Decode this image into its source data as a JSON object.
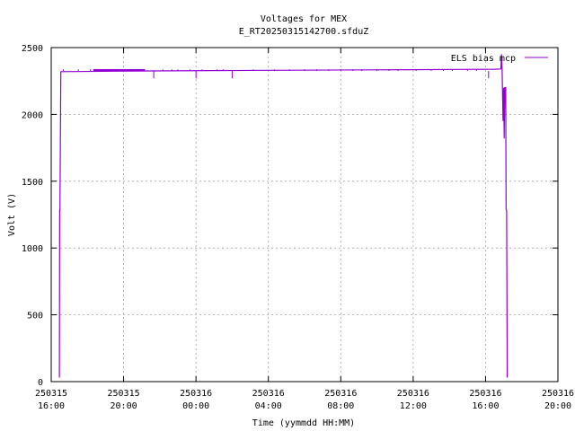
{
  "chart_data": {
    "type": "line",
    "title": "Voltages for MEX",
    "subtitle": "E_RT20250315142700.sfduZ",
    "xlabel": "Time (yymmdd HH:MM)",
    "ylabel": "Volt (V)",
    "xlim": [
      "2025-03-15 16:00",
      "2025-03-16 20:00"
    ],
    "ylim": [
      0,
      2500
    ],
    "grid": true,
    "legend_position": "top-right",
    "colors": {
      "series": "#9400d3"
    },
    "y_ticks": [
      {
        "value": 0,
        "label": "0"
      },
      {
        "value": 500,
        "label": "500"
      },
      {
        "value": 1000,
        "label": "1000"
      },
      {
        "value": 1500,
        "label": "1500"
      },
      {
        "value": 2000,
        "label": "2000"
      },
      {
        "value": 2500,
        "label": "2500"
      }
    ],
    "x_ticks": [
      {
        "value": "2025-03-15 16:00",
        "date": "250315",
        "time": "16:00"
      },
      {
        "value": "2025-03-15 20:00",
        "date": "250315",
        "time": "20:00"
      },
      {
        "value": "2025-03-16 00:00",
        "date": "250316",
        "time": "00:00"
      },
      {
        "value": "2025-03-16 04:00",
        "date": "250316",
        "time": "04:00"
      },
      {
        "value": "2025-03-16 08:00",
        "date": "250316",
        "time": "08:00"
      },
      {
        "value": "2025-03-16 12:00",
        "date": "250316",
        "time": "12:00"
      },
      {
        "value": "2025-03-16 16:00",
        "date": "250316",
        "time": "16:00"
      },
      {
        "value": "2025-03-16 20:00",
        "date": "250316",
        "time": "20:00"
      }
    ],
    "series": [
      {
        "name": "ELS bias mcp",
        "points": [
          [
            "2025-03-15 16:27",
            30
          ],
          [
            "2025-03-15 16:28",
            1280
          ],
          [
            "2025-03-15 16:29",
            1280
          ],
          [
            "2025-03-15 16:32",
            2320
          ],
          [
            "2025-03-15 21:30",
            2325
          ],
          [
            "2025-03-16 04:00",
            2330
          ],
          [
            "2025-03-16 12:00",
            2335
          ],
          [
            "2025-03-16 16:30",
            2338
          ],
          [
            "2025-03-16 16:51",
            2340
          ],
          [
            "2025-03-16 16:53",
            2450
          ],
          [
            "2025-03-16 16:55",
            2330
          ],
          [
            "2025-03-16 16:58",
            1950
          ],
          [
            "2025-03-16 17:00",
            2200
          ],
          [
            "2025-03-16 17:02",
            1820
          ],
          [
            "2025-03-16 17:04",
            2200
          ],
          [
            "2025-03-16 17:07",
            2200
          ],
          [
            "2025-03-16 17:08",
            1290
          ],
          [
            "2025-03-16 17:10",
            1280
          ],
          [
            "2025-03-16 17:12",
            30
          ]
        ],
        "dips": [
          [
            "2025-03-15 21:40",
            2270
          ],
          [
            "2025-03-16 00:00",
            2270
          ],
          [
            "2025-03-16 02:00",
            2270
          ],
          [
            "2025-03-16 16:10",
            2270
          ]
        ],
        "spikes": [
          "2025-03-15 16:40",
          "2025-03-15 17:30",
          "2025-03-15 18:10",
          "2025-03-15 18:40",
          "2025-03-15 19:05",
          "2025-03-15 19:30",
          "2025-03-15 20:00",
          "2025-03-15 20:30",
          "2025-03-15 20:50",
          "2025-03-15 21:10",
          "2025-03-15 22:10",
          "2025-03-15 22:40",
          "2025-03-15 23:00",
          "2025-03-15 23:40",
          "2025-03-16 00:20",
          "2025-03-16 01:10",
          "2025-03-16 01:30",
          "2025-03-16 03:10",
          "2025-03-16 04:20",
          "2025-03-16 05:10",
          "2025-03-16 06:00",
          "2025-03-16 06:40",
          "2025-03-16 07:20",
          "2025-03-16 08:00",
          "2025-03-16 08:40",
          "2025-03-16 09:10",
          "2025-03-16 10:00",
          "2025-03-16 10:40",
          "2025-03-16 11:10",
          "2025-03-16 12:10",
          "2025-03-16 13:00",
          "2025-03-16 13:40",
          "2025-03-16 14:10",
          "2025-03-16 15:00",
          "2025-03-16 15:30"
        ],
        "dense_segment": [
          "2025-03-15 18:20",
          "2025-03-15 21:10"
        ]
      }
    ]
  }
}
